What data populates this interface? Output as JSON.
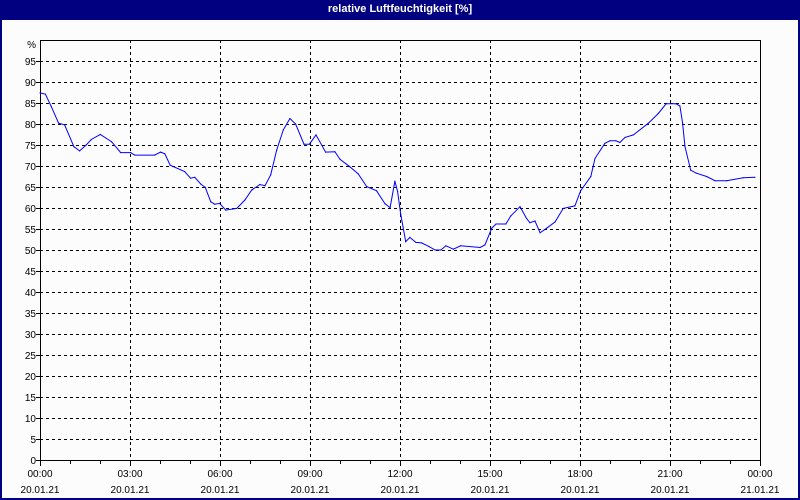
{
  "window": {
    "title": "relative Luftfeuchtigkeit [%]"
  },
  "chart_data": {
    "type": "line",
    "title": "relative Luftfeuchtigkeit [%]",
    "ylabel": "%",
    "xlabel": "",
    "ylim": [
      0,
      100
    ],
    "yticks": [
      0,
      5,
      10,
      15,
      20,
      25,
      30,
      35,
      40,
      45,
      50,
      55,
      60,
      65,
      70,
      75,
      80,
      85,
      90,
      95
    ],
    "xlim_hours": [
      0,
      24
    ],
    "xticks": [
      {
        "hour": 0,
        "time": "00:00",
        "date": "20.01.21"
      },
      {
        "hour": 3,
        "time": "03:00",
        "date": "20.01.21"
      },
      {
        "hour": 6,
        "time": "06:00",
        "date": "20.01.21"
      },
      {
        "hour": 9,
        "time": "09:00",
        "date": "20.01.21"
      },
      {
        "hour": 12,
        "time": "12:00",
        "date": "20.01.21"
      },
      {
        "hour": 15,
        "time": "15:00",
        "date": "20.01.21"
      },
      {
        "hour": 18,
        "time": "18:00",
        "date": "20.01.21"
      },
      {
        "hour": 21,
        "time": "21:00",
        "date": "20.01.21"
      },
      {
        "hour": 24,
        "time": "00:00",
        "date": "21.01.21"
      }
    ],
    "grid": true,
    "line_color": "#0000ff",
    "series": [
      {
        "name": "relative Luftfeuchtigkeit",
        "x_hours": [
          0,
          0.18,
          0.38,
          0.62,
          0.82,
          1.13,
          1.32,
          1.54,
          1.71,
          2.01,
          2.38,
          2.69,
          3.02,
          3.16,
          3.82,
          4.02,
          4.16,
          4.34,
          4.82,
          5.02,
          5.16,
          5.36,
          5.51,
          5.69,
          5.82,
          5.99,
          6.19,
          6.56,
          6.83,
          7.06,
          7.33,
          7.5,
          7.69,
          7.89,
          8.11,
          8.33,
          8.52,
          8.8,
          8.98,
          9.2,
          9.52,
          9.83,
          10,
          10.33,
          10.61,
          10.89,
          11.22,
          11.5,
          11.67,
          11.83,
          11.92,
          12.02,
          12.19,
          12.33,
          12.53,
          12.72,
          12.97,
          13.17,
          13.36,
          13.53,
          13.78,
          14.02,
          14.67,
          14.83,
          15.06,
          15.2,
          15.53,
          15.69,
          16,
          16.22,
          16.33,
          16.5,
          16.67,
          16.89,
          17.17,
          17.44,
          17.83,
          18.02,
          18.36,
          18.5,
          18.83,
          19,
          19.2,
          19.33,
          19.5,
          19.78,
          20.28,
          20.61,
          20.87,
          21.2,
          21.33,
          21.42,
          21.5,
          21.69,
          21.87,
          22.22,
          22.5,
          22.89,
          23.44,
          23.83
        ],
        "values": [
          87.4,
          87.1,
          84.1,
          80.2,
          79.8,
          74.6,
          73.6,
          75,
          76.3,
          77.5,
          75.8,
          73.2,
          73.2,
          72.6,
          72.6,
          73.3,
          72.9,
          70.2,
          68.7,
          67.1,
          67.3,
          65.7,
          64.9,
          61.5,
          60.9,
          61.1,
          59.5,
          59.9,
          61.9,
          64.3,
          65.6,
          65.3,
          67.9,
          73.8,
          78.6,
          81.3,
          80,
          75.2,
          75.2,
          77.4,
          73.3,
          73.4,
          71.6,
          69.8,
          68.1,
          65.1,
          64.1,
          61,
          60.1,
          66.4,
          63.9,
          58.7,
          52,
          53,
          51.8,
          51.7,
          50.8,
          50,
          50,
          51,
          50.2,
          51,
          50.6,
          51.2,
          55.2,
          56.2,
          56.2,
          58.1,
          60.3,
          57.5,
          56.5,
          56.9,
          54.1,
          55.2,
          56.7,
          59.9,
          60.5,
          64.1,
          67.5,
          71.8,
          75.4,
          76,
          76,
          75.6,
          76.8,
          77.4,
          80.2,
          82.5,
          84.8,
          84.8,
          84.3,
          80.2,
          74.6,
          69,
          68.3,
          67.5,
          66.5,
          66.5,
          67.2,
          67.3
        ]
      }
    ]
  }
}
